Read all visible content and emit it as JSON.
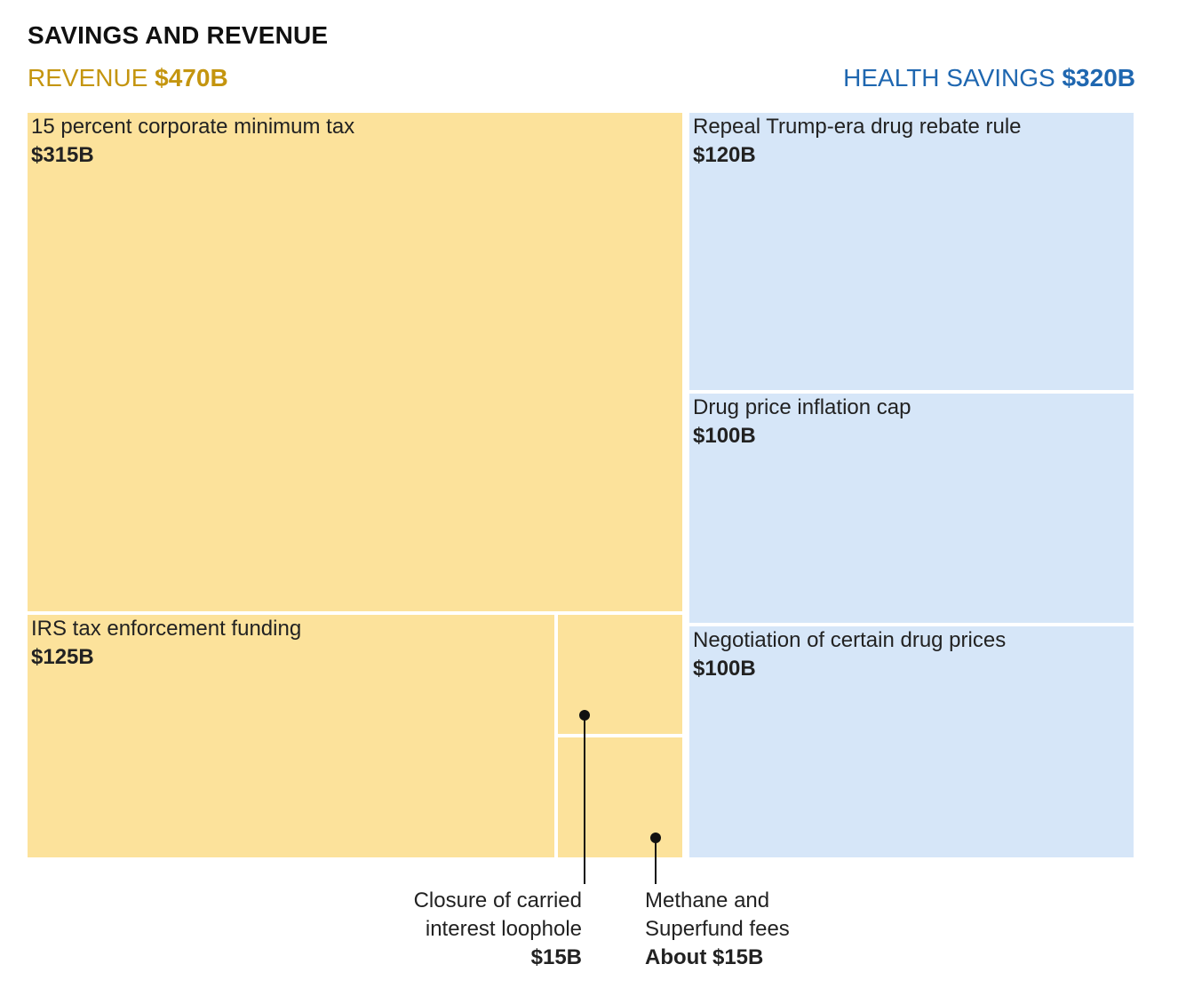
{
  "colors": {
    "revenue_fill": "#fce29b",
    "revenue_label": "#c4950f",
    "savings_fill": "#d6e6f8",
    "savings_label": "#1f67b0"
  },
  "chart_data": {
    "type": "treemap",
    "title": "SAVINGS AND REVENUE",
    "groups": [
      {
        "name": "REVENUE",
        "total_label": "$470B",
        "total": 470,
        "items": [
          {
            "name": "15 percent corporate minimum tax",
            "value": 315,
            "value_label": "$315B"
          },
          {
            "name": "IRS tax enforcement funding",
            "value": 125,
            "value_label": "$125B"
          },
          {
            "name_lines": [
              "Closure of carried",
              "interest loophole"
            ],
            "value": 15,
            "value_label": "$15B"
          },
          {
            "name_lines": [
              "Methane and",
              "Superfund fees"
            ],
            "value": 15,
            "value_label": "About $15B"
          }
        ]
      },
      {
        "name": "HEALTH SAVINGS",
        "total_label": "$320B",
        "total": 320,
        "items": [
          {
            "name": "Repeal Trump-era drug rebate rule",
            "value": 120,
            "value_label": "$120B"
          },
          {
            "name": "Drug price inflation cap",
            "value": 100,
            "value_label": "$100B"
          },
          {
            "name": "Negotiation of certain drug prices",
            "value": 100,
            "value_label": "$100B"
          }
        ]
      }
    ]
  }
}
